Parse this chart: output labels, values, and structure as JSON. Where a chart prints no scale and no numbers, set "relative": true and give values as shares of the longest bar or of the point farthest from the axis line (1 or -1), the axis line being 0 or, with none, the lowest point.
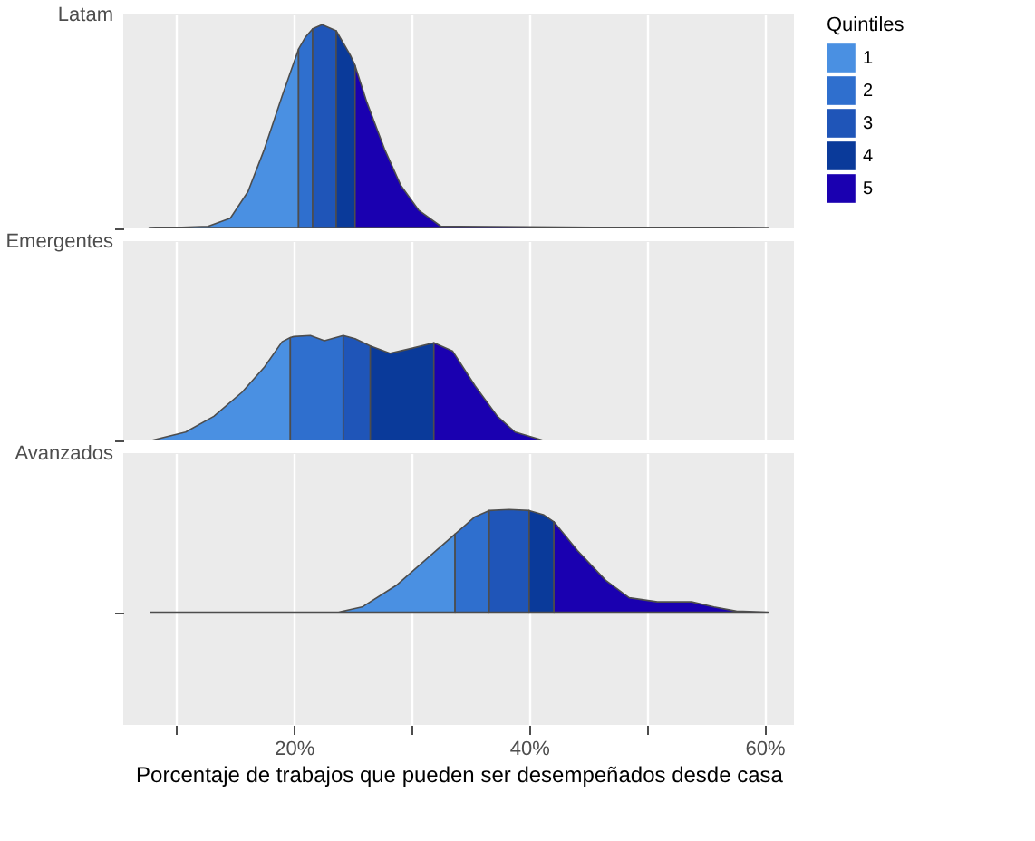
{
  "chart_data": [
    {
      "type": "area",
      "relative": true,
      "ylabel": "Latam",
      "legend_title": "Quintiles",
      "legend": "right",
      "grid": "x",
      "tick_labels": false,
      "xlim": [
        5.5,
        62.5
      ],
      "xticks": [
        {
          "value": 10,
          "label": null
        },
        {
          "value": 20,
          "label": null
        },
        {
          "value": 30,
          "label": null
        },
        {
          "value": 40,
          "label": null
        },
        {
          "value": 50,
          "label": null
        },
        {
          "value": 60,
          "label": null
        }
      ],
      "series": [
        {
          "name": "1",
          "color": "#4a90e2",
          "x": [
            7.7,
            12.7,
            14.6,
            16.1,
            17.5,
            19.0,
            20.4
          ],
          "values": [
            0,
            0.01,
            0.05,
            0.18,
            0.39,
            0.65,
            0.88
          ]
        },
        {
          "name": "2",
          "color": "#2f6fce",
          "x": [
            20.4,
            21.0,
            21.6
          ],
          "values": [
            0.88,
            0.94,
            0.98
          ]
        },
        {
          "name": "3",
          "color": "#1f55b8",
          "x": [
            21.6,
            22.4,
            23.6
          ],
          "values": [
            0.98,
            1.0,
            0.97
          ]
        },
        {
          "name": "4",
          "color": "#0a3a9a",
          "x": [
            23.6,
            24.8,
            25.2
          ],
          "values": [
            0.97,
            0.85,
            0.8
          ]
        },
        {
          "name": "5",
          "color": "#1a00b0",
          "x": [
            25.2,
            26.2,
            27.7,
            29.1,
            30.6,
            32.5,
            60.3
          ],
          "values": [
            0.8,
            0.62,
            0.39,
            0.21,
            0.09,
            0.01,
            0
          ]
        }
      ]
    },
    {
      "type": "area",
      "relative": true,
      "ylabel": "Emergentes",
      "grid": "x",
      "tick_labels": false,
      "xlim": [
        5.5,
        62.5
      ],
      "xticks": [
        {
          "value": 10,
          "label": null
        },
        {
          "value": 20,
          "label": null
        },
        {
          "value": 30,
          "label": null
        },
        {
          "value": 40,
          "label": null
        },
        {
          "value": 50,
          "label": null
        },
        {
          "value": 60,
          "label": null
        }
      ],
      "series": [
        {
          "color": "#4a90e2",
          "x": [
            7.9,
            10.8,
            13.2,
            15.6,
            17.5,
            19.0,
            19.7
          ],
          "values": [
            0,
            0.08,
            0.23,
            0.46,
            0.7,
            0.94,
            0.98
          ]
        },
        {
          "color": "#2f6fce",
          "x": [
            19.7,
            20.0,
            21.4,
            22.6,
            24.2
          ],
          "values": [
            0.98,
            0.99,
            1.0,
            0.95,
            1.0
          ]
        },
        {
          "color": "#1f55b8",
          "x": [
            24.2,
            25.2,
            26.5
          ],
          "values": [
            1.0,
            0.97,
            0.9
          ]
        },
        {
          "color": "#0a3a9a",
          "x": [
            26.5,
            28.2,
            30.1,
            31.9
          ],
          "values": [
            0.9,
            0.83,
            0.88,
            0.93
          ]
        },
        {
          "color": "#1a00b0",
          "x": [
            31.9,
            33.5,
            35.4,
            37.3,
            38.8,
            41.2,
            60.3
          ],
          "values": [
            0.93,
            0.85,
            0.52,
            0.23,
            0.08,
            0,
            0
          ]
        }
      ]
    },
    {
      "type": "area",
      "relative": true,
      "ylabel": "Avanzados",
      "xlabel": "Porcentaje de trabajos que pueden ser desempeñados desde casa",
      "grid": "x",
      "tick_labels": "x",
      "xlim": [
        5.5,
        62.5
      ],
      "xticks": [
        {
          "value": 10,
          "label": null
        },
        {
          "value": 20,
          "label": "20%"
        },
        {
          "value": 30,
          "label": null
        },
        {
          "value": 40,
          "label": "40%"
        },
        {
          "value": 50,
          "label": null
        },
        {
          "value": 60,
          "label": "60%"
        }
      ],
      "series": [
        {
          "color": "#4a90e2",
          "x": [
            7.8,
            23.8,
            25.8,
            28.7,
            31.6,
            33.7
          ],
          "values": [
            0,
            0,
            0.05,
            0.26,
            0.55,
            0.76
          ]
        },
        {
          "color": "#2f6fce",
          "x": [
            33.7,
            35.4,
            36.6
          ],
          "values": [
            0.76,
            0.93,
            0.99
          ]
        },
        {
          "color": "#1f55b8",
          "x": [
            36.6,
            38.3,
            40.0
          ],
          "values": [
            0.99,
            1.0,
            0.99
          ]
        },
        {
          "color": "#0a3a9a",
          "x": [
            40.0,
            41.2,
            42.1
          ],
          "values": [
            0.99,
            0.95,
            0.88
          ]
        },
        {
          "color": "#1a00b0",
          "x": [
            42.1,
            44.1,
            46.5,
            48.5,
            50.9,
            53.8,
            55.7,
            57.6,
            60.3
          ],
          "values": [
            0.88,
            0.6,
            0.31,
            0.14,
            0.1,
            0.1,
            0.05,
            0.01,
            0
          ]
        }
      ]
    }
  ]
}
